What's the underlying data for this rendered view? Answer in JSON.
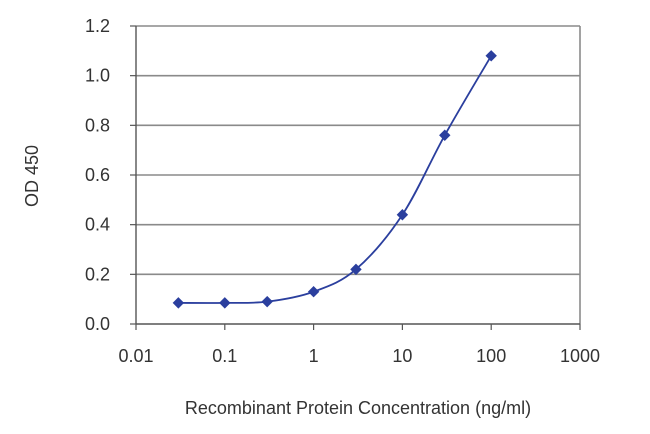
{
  "chart_data": {
    "type": "scatter",
    "title": "",
    "xlabel": "Recombinant Protein Concentration (ng/ml)",
    "ylabel": "OD 450",
    "x_scale": "log",
    "xlim": [
      0.01,
      1000
    ],
    "ylim": [
      0,
      1.2
    ],
    "x_ticks": [
      "0.01",
      "0.1",
      "1",
      "10",
      "100",
      "1000"
    ],
    "y_ticks": [
      "0.0",
      "0.2",
      "0.4",
      "0.6",
      "0.8",
      "1.0",
      "1.2"
    ],
    "grid": "horizontal",
    "legend": "none",
    "series": [
      {
        "color": "#2b3f9e",
        "marker": "diamond",
        "line": "smooth",
        "points": [
          {
            "x": 0.03,
            "y": 0.085
          },
          {
            "x": 0.1,
            "y": 0.085
          },
          {
            "x": 0.3,
            "y": 0.09
          },
          {
            "x": 1,
            "y": 0.13
          },
          {
            "x": 3,
            "y": 0.22
          },
          {
            "x": 10,
            "y": 0.44
          },
          {
            "x": 30,
            "y": 0.76
          },
          {
            "x": 100,
            "y": 1.08
          }
        ]
      }
    ]
  }
}
